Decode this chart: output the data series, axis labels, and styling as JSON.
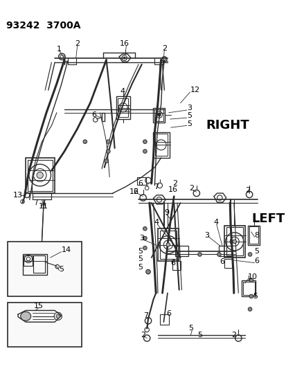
{
  "title": "93242  3700A",
  "bg_color": "#ffffff",
  "line_color": "#2a2a2a",
  "label_color": "#000000",
  "right_label": "RIGHT",
  "left_label": "LEFT",
  "title_fontsize": 10,
  "label_fontsize": 13,
  "part_fontsize": 8,
  "figsize": [
    4.14,
    5.33
  ],
  "dpi": 100
}
